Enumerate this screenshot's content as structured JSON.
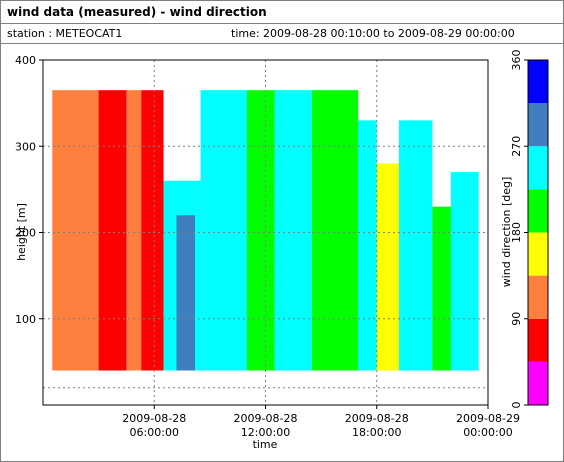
{
  "header": {
    "title": "wind data (measured) - wind direction",
    "station": "station : METEOCAT1",
    "time_range": "time: 2009-08-28 00:10:00 to 2009-08-29 00:00:00"
  },
  "chart_data": {
    "type": "heatmap",
    "xlabel": "time",
    "ylabel": "height [m]",
    "colorbar_label": "wind direction [deg]",
    "x_range_hours": [
      -0.0,
      24.0
    ],
    "x_ticks": [
      {
        "hour": 6,
        "line1": "2009-08-28",
        "line2": "06:00:00"
      },
      {
        "hour": 12,
        "line1": "2009-08-28",
        "line2": "12:00:00"
      },
      {
        "hour": 18,
        "line1": "2009-08-28",
        "line2": "18:00:00"
      },
      {
        "hour": 24,
        "line1": "2009-08-29",
        "line2": "00:00:00"
      }
    ],
    "ylim": [
      0,
      400
    ],
    "y_ticks": [
      100,
      200,
      300,
      400
    ],
    "colorbar": {
      "min": 0,
      "max": 360,
      "ticks": [
        0,
        90,
        180,
        270,
        360
      ],
      "bins": [
        {
          "from": 0,
          "to": 45,
          "color": "#ff00ff"
        },
        {
          "from": 45,
          "to": 90,
          "color": "#ff0000"
        },
        {
          "from": 90,
          "to": 135,
          "color": "#ff7f3f"
        },
        {
          "from": 135,
          "to": 180,
          "color": "#ffff00"
        },
        {
          "from": 180,
          "to": 225,
          "color": "#00ff00"
        },
        {
          "from": 225,
          "to": 270,
          "color": "#00ffff"
        },
        {
          "from": 270,
          "to": 315,
          "color": "#3f7fbf"
        },
        {
          "from": 315,
          "to": 360,
          "color": "#0000ff"
        }
      ]
    },
    "height_range_m": [
      40,
      365
    ],
    "segments": [
      {
        "from_h": 0.5,
        "to_h": 3.0,
        "direction_deg": 112,
        "top_m": 365
      },
      {
        "from_h": 3.0,
        "to_h": 4.5,
        "direction_deg": 67,
        "top_m": 365
      },
      {
        "from_h": 4.5,
        "to_h": 5.3,
        "direction_deg": 112,
        "top_m": 365
      },
      {
        "from_h": 5.3,
        "to_h": 6.5,
        "direction_deg": 67,
        "top_m": 365
      },
      {
        "from_h": 6.5,
        "to_h": 8.5,
        "direction_deg": 247,
        "top_m": 260
      },
      {
        "from_h": 7.2,
        "to_h": 8.2,
        "direction_deg": 292,
        "top_m": 220
      },
      {
        "from_h": 8.5,
        "to_h": 11.0,
        "direction_deg": 247,
        "top_m": 365
      },
      {
        "from_h": 11.0,
        "to_h": 12.5,
        "direction_deg": 202,
        "top_m": 365
      },
      {
        "from_h": 12.5,
        "to_h": 14.5,
        "direction_deg": 247,
        "top_m": 365
      },
      {
        "from_h": 14.5,
        "to_h": 17.0,
        "direction_deg": 202,
        "top_m": 365
      },
      {
        "from_h": 17.0,
        "to_h": 18.0,
        "direction_deg": 247,
        "top_m": 330
      },
      {
        "from_h": 18.0,
        "to_h": 19.2,
        "direction_deg": 157,
        "top_m": 280
      },
      {
        "from_h": 19.2,
        "to_h": 21.0,
        "direction_deg": 247,
        "top_m": 330
      },
      {
        "from_h": 21.0,
        "to_h": 22.0,
        "direction_deg": 202,
        "top_m": 230
      },
      {
        "from_h": 22.0,
        "to_h": 23.5,
        "direction_deg": 247,
        "top_m": 270
      }
    ]
  }
}
